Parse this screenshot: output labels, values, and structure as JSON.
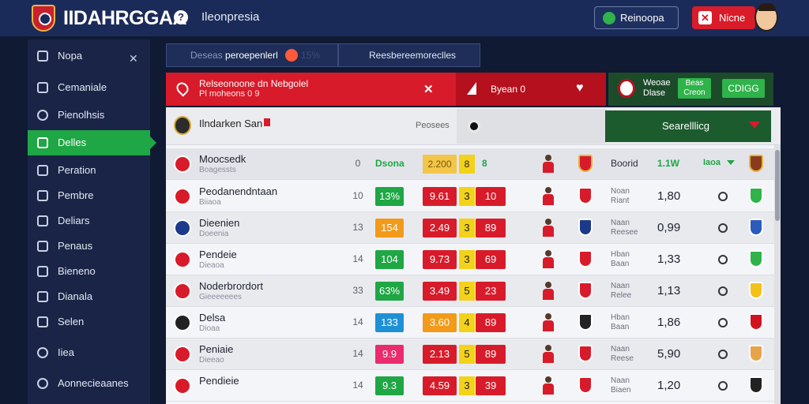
{
  "header": {
    "brand": "IIDAHRGGAA",
    "help_icon": "help-icon",
    "title": "Ileonpresia",
    "buttons": [
      {
        "label": "Reinoopa",
        "icon": "green-dot-icon"
      },
      {
        "label": "Nicne",
        "icon": "close-icon"
      }
    ]
  },
  "sidebar": {
    "title": "Nopa",
    "items": [
      {
        "label": "Cemaniale",
        "icon": "document-icon"
      },
      {
        "label": "Pienolhsis",
        "icon": "search-icon"
      },
      {
        "label": "Delles",
        "icon": "calendar-icon",
        "active": true
      },
      {
        "label": "Peration",
        "icon": "document-icon"
      },
      {
        "label": "Pembre",
        "icon": "users-icon"
      },
      {
        "label": "Deliars",
        "icon": "chat-icon"
      },
      {
        "label": "Penaus",
        "icon": "list-icon"
      },
      {
        "label": "Bieneno",
        "icon": "list-icon"
      },
      {
        "label": "Dianala",
        "icon": "list-icon"
      },
      {
        "label": "Selen",
        "icon": "tag-icon"
      },
      {
        "label": "Iiea",
        "icon": "pin-icon"
      },
      {
        "label": "Aonnecieaanes",
        "icon": "location-icon"
      }
    ]
  },
  "tabs": [
    {
      "label": "Deseas",
      "label2": "peroepenlerl",
      "badge": "15%"
    },
    {
      "label": "Reesbereemoreclles"
    }
  ],
  "band": {
    "title": "Relseonoone dn Nebgolel",
    "subtitle": "Pl moheons 0 9",
    "middle": "Byean 0",
    "right_t1": "Weoae",
    "right_t2": "Dlase",
    "right_b1": "Beas Creon",
    "right_b2": "CDIGG"
  },
  "filter": {
    "name": "Ilndarken San",
    "stat": "Peosees",
    "button_label": "Searelllicg"
  },
  "table": {
    "header": {
      "name": "Moocsedk",
      "sub": "Boagessts",
      "num": "0",
      "h1": "Dsona",
      "hb": "2.200",
      "hc": "8",
      "hd": "8",
      "hs": "Boorid",
      "ho": "1.1W",
      "hf": "Iaoa"
    },
    "rows": [
      {
        "name": "Peodanendntaan",
        "sub": "Biiaoa",
        "num": "10",
        "a": "13%",
        "a_color": "#1fa645",
        "b": "9.61",
        "b_color": "#d81b2a",
        "c": "3",
        "d": "10",
        "meta": "Noan Riant",
        "odds": "1,80",
        "c1": "#d81b2a",
        "c2": "#2fb34a"
      },
      {
        "name": "Dieenien",
        "sub": "Doeenia",
        "num": "13",
        "a": "154",
        "a_color": "#f29a1a",
        "b": "2.49",
        "b_color": "#d81b2a",
        "c": "3",
        "d": "89",
        "meta": "Naan Reesee",
        "odds": "0,99",
        "c1": "#1d3a8a",
        "c2": "#2b5bbf"
      },
      {
        "name": "Pendeie",
        "sub": "Dieaoa",
        "num": "14",
        "a": "104",
        "a_color": "#1fa645",
        "b": "9.73",
        "b_color": "#d81b2a",
        "c": "3",
        "d": "69",
        "meta": "Hban Baan",
        "odds": "1,33",
        "c1": "#d81b2a",
        "c2": "#2fb34a"
      },
      {
        "name": "Noderbrordort",
        "sub": "Gieeeeeees",
        "num": "33",
        "a": "63%",
        "a_color": "#1fa645",
        "b": "3.49",
        "b_color": "#d81b2a",
        "c": "5",
        "d": "23",
        "meta": "Naan Relee",
        "odds": "1,13",
        "c1": "#d81b2a",
        "c2": "#f3c21a"
      },
      {
        "name": "Delsa",
        "sub": "Dioaa",
        "num": "14",
        "a": "133",
        "a_color": "#1e90d6",
        "b": "3.60",
        "b_color": "#f29a1a",
        "c": "4",
        "d": "89",
        "meta": "Hban Baan",
        "odds": "1,86",
        "c1": "#222222",
        "c2": "#d0121f"
      },
      {
        "name": "Peniaie",
        "sub": "Dieeao",
        "num": "14",
        "a": "9.9",
        "a_color": "#ea2b6c",
        "b": "2.13",
        "b_color": "#d81b2a",
        "c": "5",
        "d": "89",
        "meta": "Naan Reese",
        "odds": "5,90",
        "c1": "#d81b2a",
        "c2": "#e7a34a"
      },
      {
        "name": "Pendieie",
        "sub": "",
        "num": "14",
        "a": "9.3",
        "a_color": "#1fa645",
        "b": "4.59",
        "b_color": "#d81b2a",
        "c": "3",
        "d": "39",
        "meta": "Naan Biaen",
        "odds": "1,20",
        "c1": "#d81b2a",
        "c2": "#222222"
      }
    ]
  }
}
